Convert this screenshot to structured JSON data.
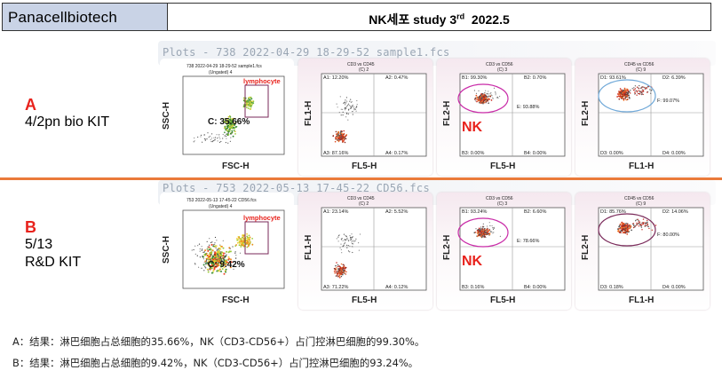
{
  "header": {
    "brand": "Panacellbiotech",
    "title_main": "NK세포 study 3",
    "title_sup": "rd",
    "title_year": "2022.5"
  },
  "colors": {
    "header_bg": "#c9d3e6",
    "accent_red": "#e8221c",
    "divider": "#ea7a3a",
    "gate_magenta": "#c92ca8",
    "gate_blue": "#6fa8d8",
    "gate_purple": "#7a2a5a"
  },
  "samples": [
    {
      "letter": "A",
      "line1": "4/2pn bio KIT",
      "line2": "",
      "plots_title": "Plots - 738 2022-04-29 18-29-52 sample1.fcs",
      "fsc": {
        "header": "738 2022-04-29 18-29-52 sample1.fcs",
        "subheader": "(Ungated) 4",
        "gate_label": "lymphocyte",
        "pct": "C: 35.66%",
        "xlabel": "FSC-H",
        "ylabel": "SSC-H"
      },
      "q1": {
        "header": "CD3 vs CD45",
        "subheader": "(C) 2",
        "xlabel": "FL5-H",
        "ylabel": "FL1-H",
        "tl": "A1: 12.20%",
        "tr": "A2: 0.47%",
        "bl": "A3: 87.16%",
        "br": "A4: 0.17%"
      },
      "q2": {
        "header": "CD3 vs CD56",
        "subheader": "(C) 3",
        "xlabel": "FL5-H",
        "ylabel": "FL2-H",
        "tl": "B1: 99.30%",
        "tr": "B2: 0.70%",
        "bl": "B3: 0.00%",
        "br": "B4: 0.00%",
        "extra": "E: 93.88%",
        "nk": "NK"
      },
      "q3": {
        "header": "CD45 vs CD56",
        "subheader": "(C) 9",
        "xlabel": "FL1-H",
        "ylabel": "FL2-H",
        "tl": "D1: 93.61%",
        "tr": "D2: 6.39%",
        "bl": "D3: 0.00%",
        "br": "D4: 0.00%",
        "extra": "F: 99.07%"
      }
    },
    {
      "letter": "B",
      "line1": "5/13",
      "line2": "R&D KIT",
      "plots_title": "Plots - 753 2022-05-13 17-45-22 CD56.fcs",
      "fsc": {
        "header": "753 2022-05-13 17-45-22 CD56.fcs",
        "subheader": "(Ungated) 4",
        "gate_label": "lymphocyte",
        "pct": "C: 9.42%",
        "xlabel": "FSC-H",
        "ylabel": "SSC-H"
      },
      "q1": {
        "header": "CD3 vs CD45",
        "subheader": "(C) 2",
        "xlabel": "FL5-H",
        "ylabel": "FL1-H",
        "tl": "A1: 23.14%",
        "tr": "A2: 5.52%",
        "bl": "A3: 71.22%",
        "br": "A4: 0.12%"
      },
      "q2": {
        "header": "CD3 vs CD56",
        "subheader": "(C) 3",
        "xlabel": "FL5-H",
        "ylabel": "FL2-H",
        "tl": "B1: 93.24%",
        "tr": "B2: 6.60%",
        "bl": "B3: 0.16%",
        "br": "B4: 0.00%",
        "extra": "E: 78.66%",
        "nk": "NK"
      },
      "q3": {
        "header": "CD45 vs CD56",
        "subheader": "(C) 9",
        "xlabel": "FL1-H",
        "ylabel": "FL2-H",
        "tl": "D1: 85.76%",
        "tr": "D2: 14.06%",
        "bl": "D3: 0.18%",
        "br": "D4: 0.00%",
        "extra": "F: 80.00%"
      }
    }
  ],
  "footer": [
    "A：结果：淋巴细胞占总细胞的35.66%，NK（CD3-CD56+）占门控淋巴细胞的99.30%。",
    "B：结果：淋巴细胞占总细胞的9.42%，NK（CD3-CD56+）占门控淋巴细胞的93.24%。"
  ]
}
